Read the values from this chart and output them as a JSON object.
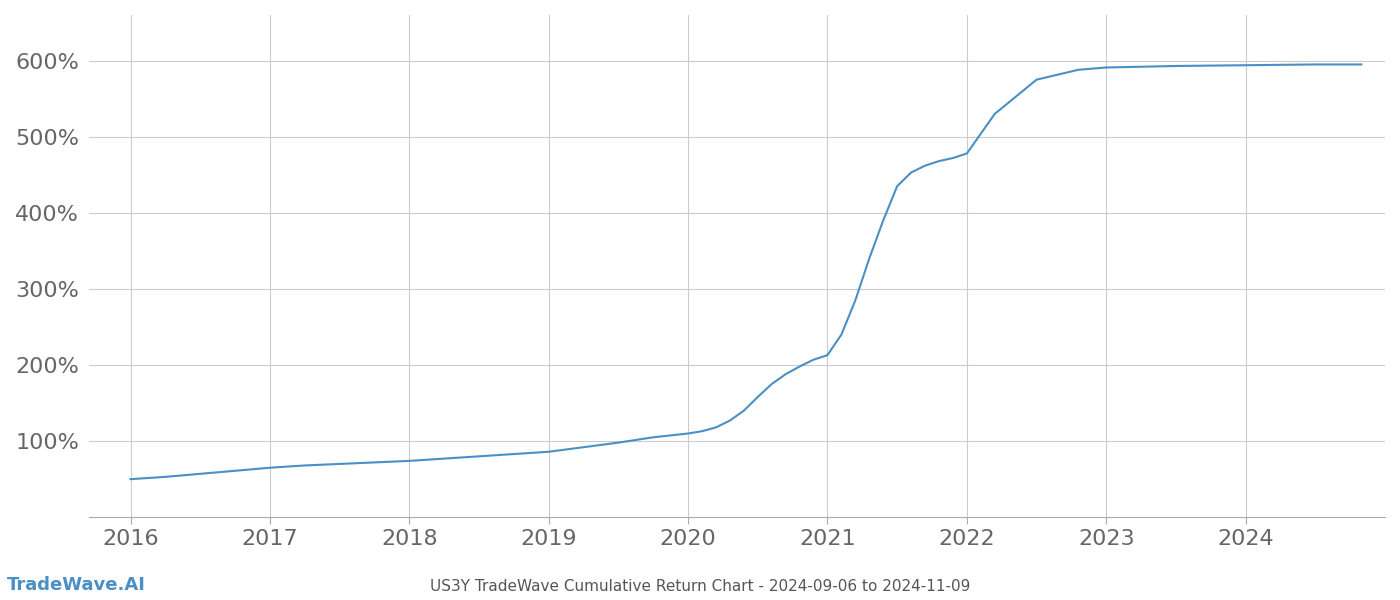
{
  "title": "US3Y TradeWave Cumulative Return Chart - 2024-09-06 to 2024-11-09",
  "watermark": "TradeWave.AI",
  "line_color": "#4a90c4",
  "background_color": "#ffffff",
  "grid_color": "#cccccc",
  "xlim": [
    2015.7,
    2025.0
  ],
  "ylim": [
    0,
    660
  ],
  "yticks": [
    100,
    200,
    300,
    400,
    500,
    600
  ],
  "xticks": [
    2016,
    2017,
    2018,
    2019,
    2020,
    2021,
    2022,
    2023,
    2024
  ],
  "title_fontsize": 11,
  "watermark_fontsize": 13,
  "tick_fontsize": 16,
  "x_data": [
    2016.0,
    2016.25,
    2016.5,
    2016.75,
    2017.0,
    2017.25,
    2017.5,
    2017.75,
    2018.0,
    2018.25,
    2018.5,
    2018.75,
    2019.0,
    2019.25,
    2019.5,
    2019.75,
    2020.0,
    2020.1,
    2020.2,
    2020.3,
    2020.4,
    2020.5,
    2020.6,
    2020.7,
    2020.8,
    2020.9,
    2021.0,
    2021.1,
    2021.2,
    2021.3,
    2021.4,
    2021.5,
    2021.6,
    2021.7,
    2021.8,
    2021.9,
    2022.0,
    2022.2,
    2022.5,
    2022.8,
    2023.0,
    2023.5,
    2024.0,
    2024.5,
    2024.83
  ],
  "y_data": [
    50,
    53,
    57,
    61,
    65,
    68,
    70,
    72,
    74,
    77,
    80,
    83,
    86,
    92,
    98,
    105,
    110,
    113,
    118,
    127,
    140,
    158,
    175,
    188,
    198,
    207,
    213,
    240,
    285,
    340,
    390,
    435,
    453,
    462,
    468,
    472,
    478,
    530,
    575,
    588,
    591,
    593,
    594,
    595,
    595
  ]
}
